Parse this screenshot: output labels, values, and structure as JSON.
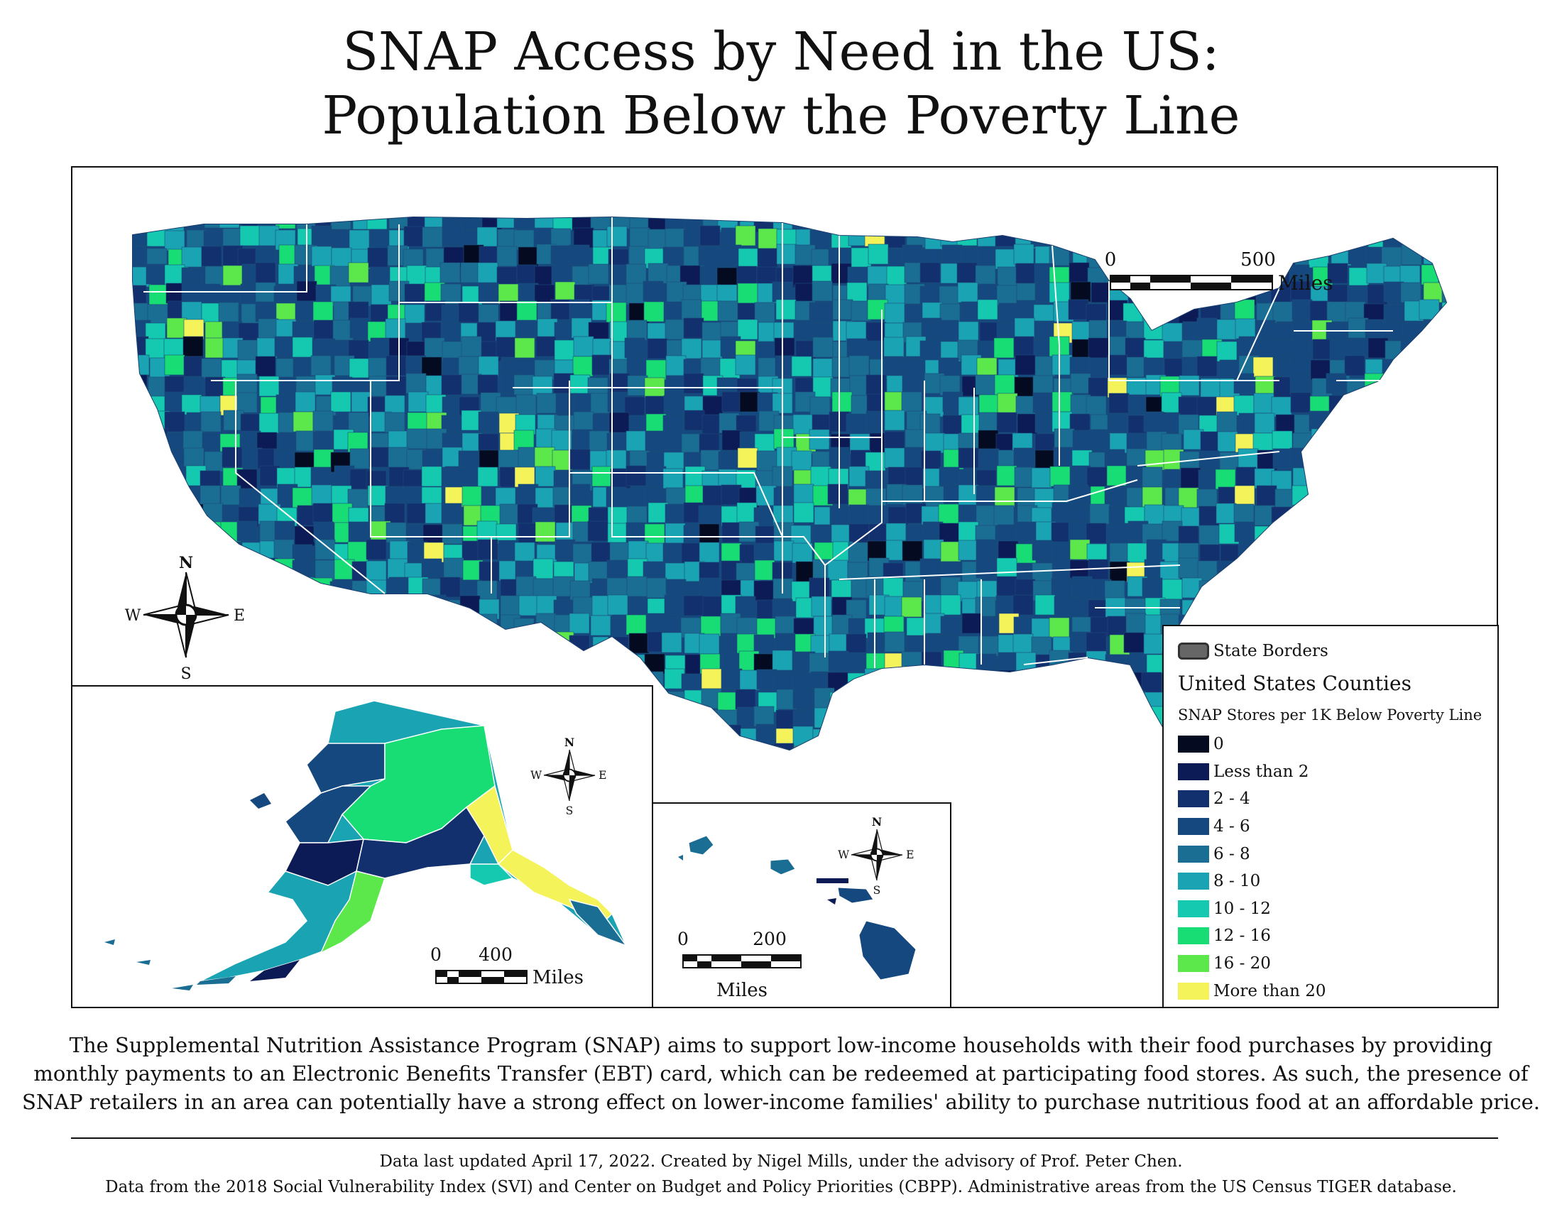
{
  "title": {
    "line1": "SNAP Access by Need in the US:",
    "line2": "Population Below the Poverty Line"
  },
  "main_map": {
    "scale_bar": {
      "start": "0",
      "end": "500",
      "unit": "Miles"
    },
    "compass": {
      "n": "N",
      "s": "S",
      "e": "E",
      "w": "W"
    }
  },
  "alaska_inset": {
    "scale_bar": {
      "start": "0",
      "end": "400",
      "unit": "Miles"
    },
    "compass": {
      "n": "N",
      "s": "S",
      "e": "E",
      "w": "W"
    }
  },
  "hawaii_inset": {
    "scale_bar": {
      "start": "0",
      "end": "200",
      "unit": "Miles"
    },
    "compass": {
      "n": "N",
      "s": "S",
      "e": "E",
      "w": "W"
    }
  },
  "legend": {
    "borders_label": "State Borders",
    "layer_title": "United States Counties",
    "field_label": "SNAP Stores per 1K Below Poverty Line",
    "classes": [
      {
        "label": "0",
        "color": "#040a1f"
      },
      {
        "label": "Less than 2",
        "color": "#0c1a55"
      },
      {
        "label": "2 - 4",
        "color": "#13306e"
      },
      {
        "label": "4 - 6",
        "color": "#14487e"
      },
      {
        "label": "6 - 8",
        "color": "#1a6e93"
      },
      {
        "label": "8 - 10",
        "color": "#1aa3b2"
      },
      {
        "label": "10 - 12",
        "color": "#14c9b0"
      },
      {
        "label": "12 - 16",
        "color": "#17dd74"
      },
      {
        "label": "16 - 20",
        "color": "#5ce84a"
      },
      {
        "label": "More than 20",
        "color": "#f4f45a"
      }
    ]
  },
  "description": {
    "line1": "The Supplemental Nutrition Assistance Program (SNAP) aims to support low-income households with their food purchases by providing",
    "line2": "monthly payments to an Electronic Benefits Transfer (EBT) card, which can be redeemed at participating food stores. As such, the presence of",
    "line3": "SNAP retailers in an area can potentially have a strong effect on lower-income families' ability to purchase nutritious food at an affordable price."
  },
  "credits": {
    "line1": "Data last updated April 17, 2022. Created by Nigel Mills, under the advisory of Prof. Peter Chen.",
    "line2": "Data from the 2018 Social Vulnerability Index (SVI) and Center on Budget and Policy Priorities (CBPP). Administrative areas from the US Census TIGER database."
  }
}
